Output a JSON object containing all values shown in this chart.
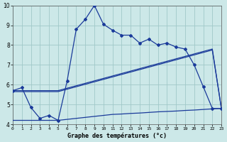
{
  "title": "Graphe des températures (°c)",
  "bg_color": "#cce8e8",
  "line_color": "#1a3a9a",
  "grid_color": "#a0c8c8",
  "xlim": [
    0,
    23
  ],
  "ylim": [
    4,
    10
  ],
  "yticks": [
    4,
    5,
    6,
    7,
    8,
    9,
    10
  ],
  "xticks": [
    0,
    1,
    2,
    3,
    4,
    5,
    6,
    7,
    8,
    9,
    10,
    11,
    12,
    13,
    14,
    15,
    16,
    17,
    18,
    19,
    20,
    21,
    22,
    23
  ],
  "series1_x": [
    0,
    1,
    2,
    3,
    4,
    5,
    6,
    7,
    8,
    9,
    10,
    11,
    12,
    13,
    14,
    15,
    16,
    17,
    18,
    19,
    20,
    21,
    22,
    23
  ],
  "series1_y": [
    5.7,
    5.85,
    4.85,
    4.3,
    4.45,
    4.2,
    6.2,
    8.8,
    9.3,
    10.0,
    9.05,
    8.75,
    8.5,
    8.5,
    8.1,
    8.3,
    8.0,
    8.1,
    7.9,
    7.8,
    7.0,
    5.9,
    4.8,
    4.8
  ],
  "series2_x": [
    0,
    5,
    22,
    23
  ],
  "series2_y": [
    5.7,
    5.7,
    7.8,
    4.8
  ],
  "series3_x": [
    0,
    5,
    22,
    23
  ],
  "series3_y": [
    5.65,
    5.65,
    7.75,
    4.8
  ],
  "series4_x": [
    0,
    5,
    6,
    7,
    8,
    9,
    10,
    11,
    12,
    13,
    14,
    15,
    16,
    17,
    18,
    19,
    20,
    21,
    22,
    23
  ],
  "series4_y": [
    4.2,
    4.2,
    4.25,
    4.3,
    4.35,
    4.4,
    4.45,
    4.5,
    4.52,
    4.55,
    4.57,
    4.6,
    4.63,
    4.65,
    4.67,
    4.7,
    4.72,
    4.75,
    4.78,
    4.8
  ]
}
